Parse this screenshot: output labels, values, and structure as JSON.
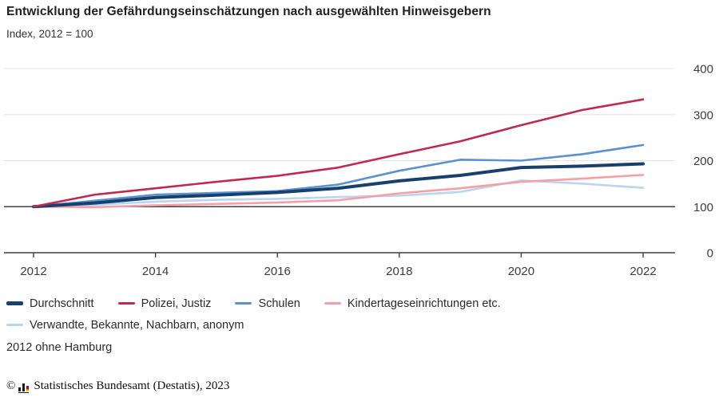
{
  "header": {
    "title": "Entwicklung der Gefährdungseinschätzungen nach ausgewählten Hinweisgebern",
    "subtitle": "Index, 2012 = 100"
  },
  "footnote": "2012 ohne Hamburg",
  "copyright": {
    "prefix": "©",
    "logo_icon": "destatis-bar-chart-logo",
    "text": "Statistisches Bundesamt (Destatis), 2023"
  },
  "colors": {
    "grid": "#e4e4e4",
    "axis": "#3f3f3f",
    "axis_text": "#3d3d3d"
  },
  "chart_data": {
    "type": "line",
    "title": "Entwicklung der Gefährdungseinschätzungen nach ausgewählten Hinweisgebern",
    "subtitle": "Index, 2012 = 100",
    "x": [
      2012,
      2013,
      2014,
      2015,
      2016,
      2017,
      2018,
      2019,
      2020,
      2021,
      2022
    ],
    "x_tick_labels": [
      "2012",
      "2014",
      "2016",
      "2018",
      "2020",
      "2022"
    ],
    "y_ticks": [
      0,
      100,
      200,
      300,
      400
    ],
    "ylim": [
      0,
      400
    ],
    "baseline": 100,
    "grid": true,
    "legend_position": "bottom",
    "y_axis_side": "right",
    "series": [
      {
        "name": "Durchschnitt",
        "color": "#17406e",
        "thick": 4,
        "values": [
          100,
          108,
          120,
          125,
          131,
          140,
          156,
          168,
          185,
          188,
          193
        ]
      },
      {
        "name": "Polizei, Justiz",
        "color": "#c02a4d",
        "thick": 2.6,
        "values": [
          100,
          126,
          140,
          154,
          167,
          185,
          214,
          242,
          277,
          310,
          333
        ]
      },
      {
        "name": "Schulen",
        "color": "#5c90d2",
        "thick": 2.6,
        "values": [
          100,
          113,
          126,
          130,
          134,
          148,
          178,
          202,
          200,
          214,
          234
        ]
      },
      {
        "name": "Kindertageseinrichtungen etc.",
        "color": "#f79fa6",
        "thick": 2.6,
        "values": [
          100,
          99,
          103,
          106,
          109,
          114,
          129,
          140,
          154,
          161,
          169
        ]
      },
      {
        "name": "Verwandte, Bekannte, Nachbarn, anonym",
        "color": "#b9d5f2",
        "thick": 2.6,
        "values": [
          100,
          104,
          111,
          115,
          117,
          121,
          124,
          132,
          157,
          150,
          141
        ]
      }
    ]
  }
}
